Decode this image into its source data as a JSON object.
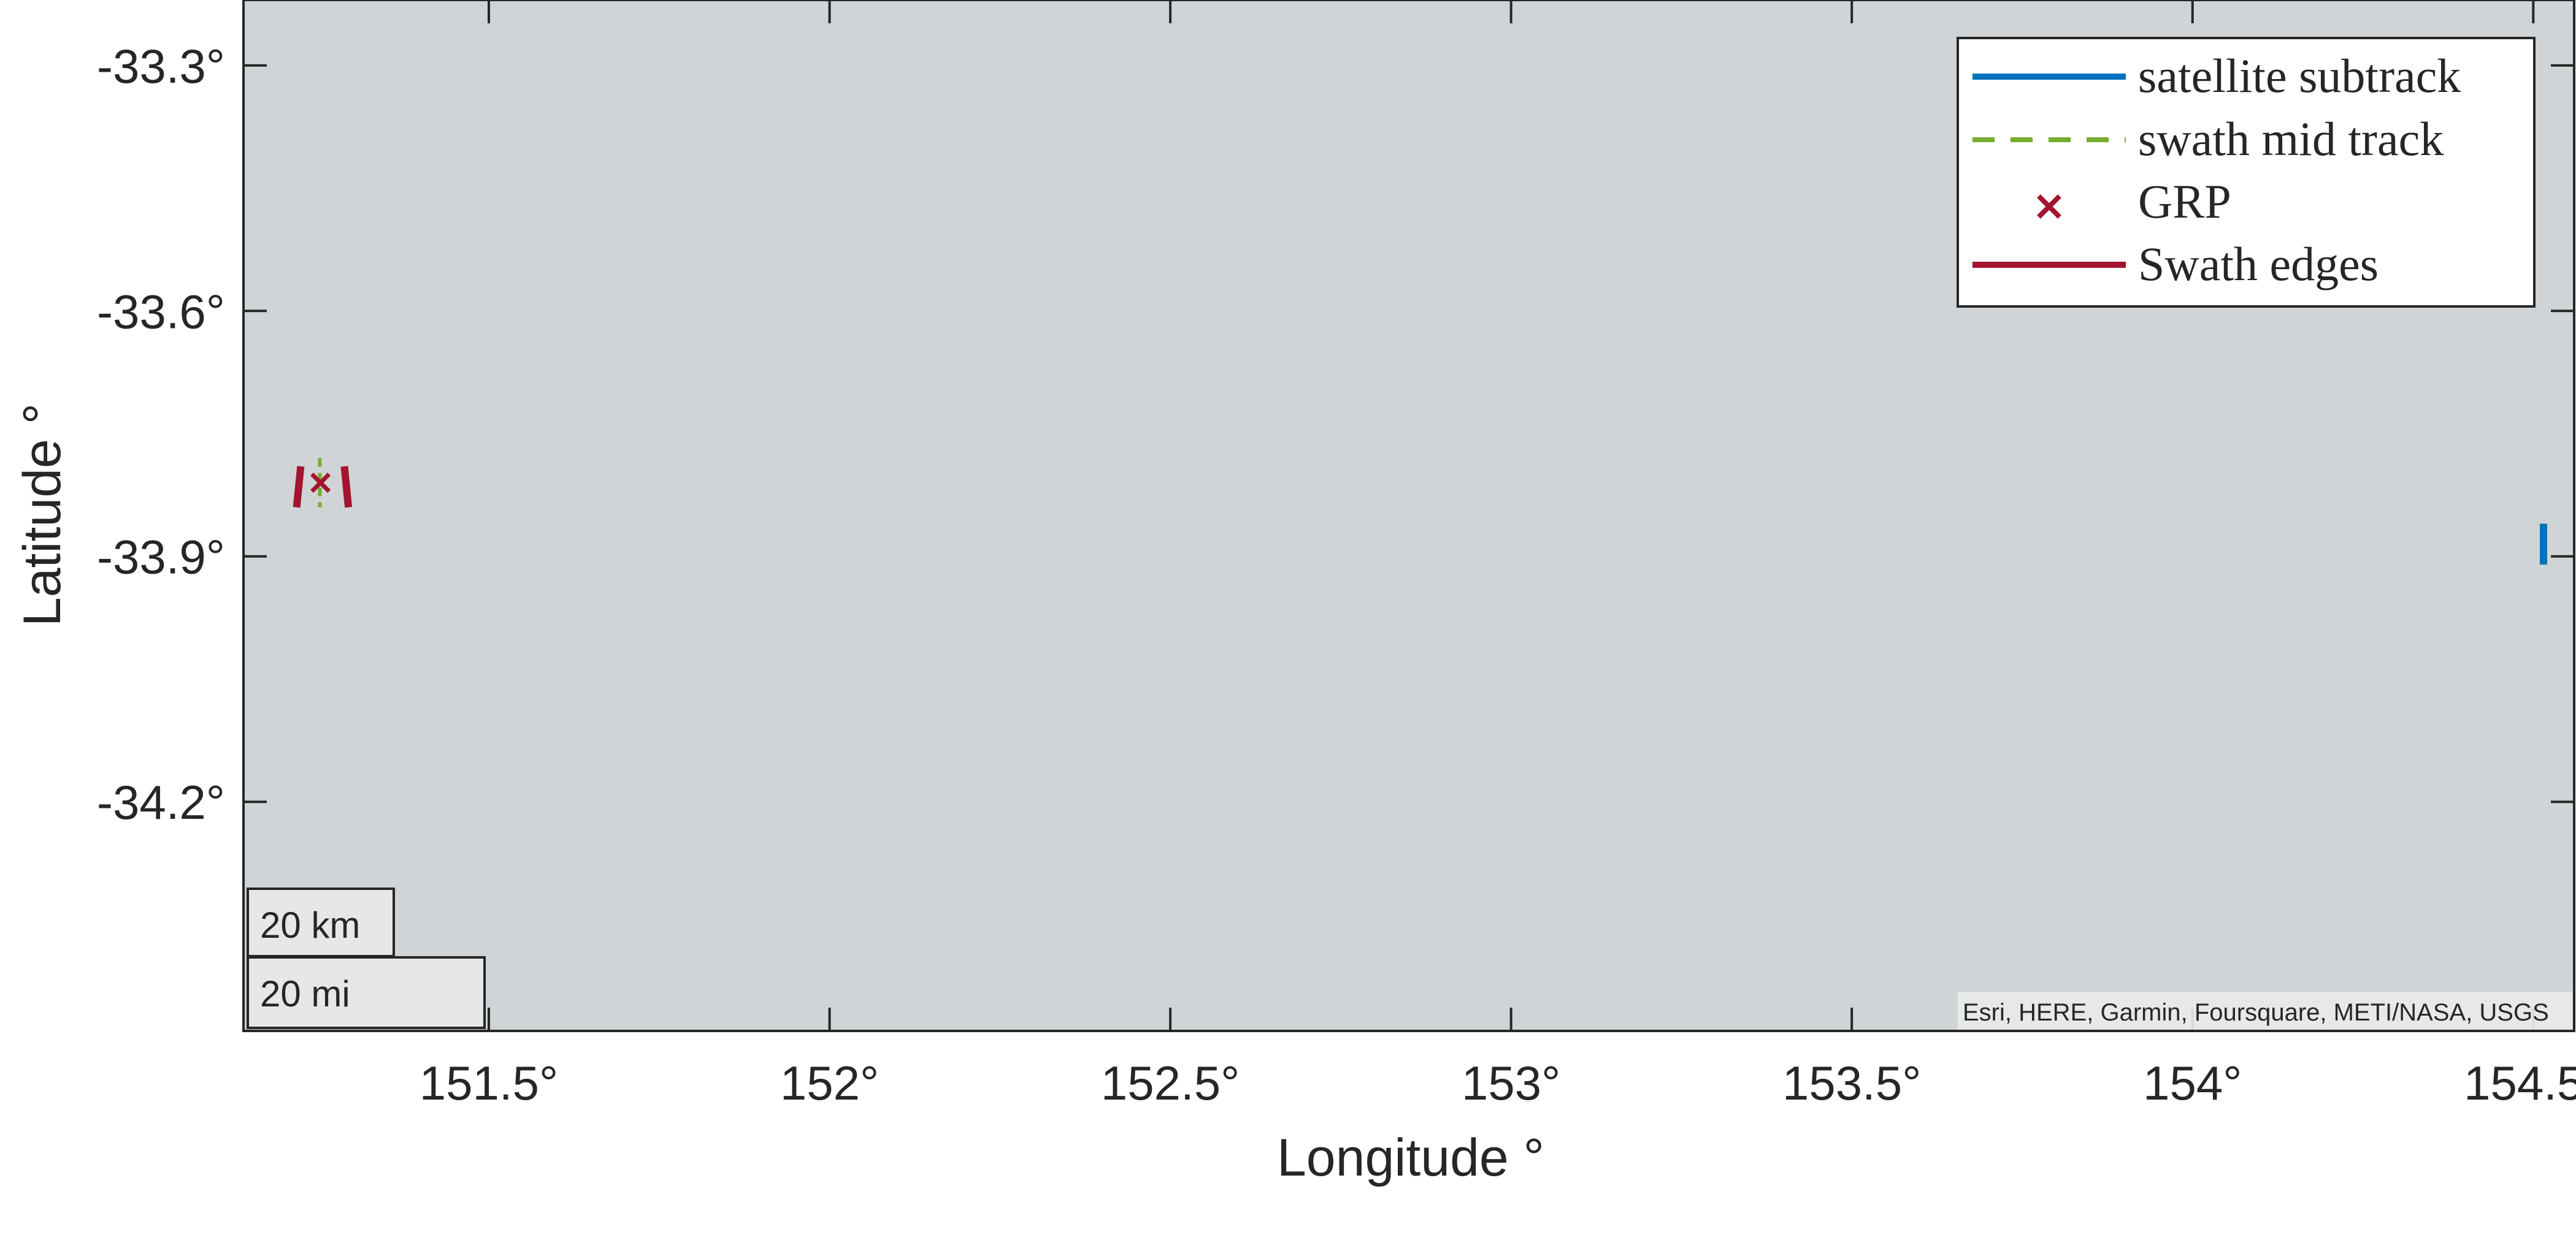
{
  "map": {
    "x_label": "Longitude °",
    "y_label": "Latitude °",
    "background_color": "#d0d4d6",
    "xlim": [
      151.14,
      154.56
    ],
    "ylim": [
      -34.48,
      -33.22
    ],
    "x_ticks": [
      {
        "value": 151.5,
        "label": "151.5°"
      },
      {
        "value": 152.0,
        "label": "152°"
      },
      {
        "value": 152.5,
        "label": "152.5°"
      },
      {
        "value": 153.0,
        "label": "153°"
      },
      {
        "value": 153.5,
        "label": "153.5°"
      },
      {
        "value": 154.0,
        "label": "154°"
      },
      {
        "value": 154.5,
        "label": "154.5°"
      }
    ],
    "y_ticks": [
      {
        "value": -33.3,
        "label": "-33.3°"
      },
      {
        "value": -33.6,
        "label": "-33.6°"
      },
      {
        "value": -33.9,
        "label": "-33.9°"
      },
      {
        "value": -34.2,
        "label": "-34.2°"
      }
    ],
    "legend": {
      "placement": "top-right",
      "entries": [
        {
          "label": "satellite subtrack",
          "style": "solid",
          "color": "#0072bd"
        },
        {
          "label": "swath mid track",
          "style": "dashed",
          "color": "#77ac30"
        },
        {
          "label": "GRP",
          "style": "marker-x",
          "color": "#a2142f"
        },
        {
          "label": "Swath edges",
          "style": "solid",
          "color": "#a2142f"
        }
      ]
    },
    "scale_bar": {
      "km_label": "20 km",
      "mi_label": "20 mi"
    },
    "attribution": "Esri, HERE, Garmin, Foursquare, METI/NASA, USGS",
    "features": {
      "satellite_subtrack": {
        "color": "#0072bd",
        "points": [
          [
            154.515,
            -33.86
          ],
          [
            154.515,
            -33.91
          ]
        ]
      },
      "swath_mid_track": {
        "color": "#77ac30",
        "points": [
          [
            151.252,
            -33.78
          ],
          [
            151.252,
            -33.84
          ]
        ]
      },
      "grp": {
        "color": "#a2142f",
        "point": [
          151.253,
          -33.81
        ]
      },
      "swath_edges": {
        "color": "#a2142f",
        "lines": [
          [
            [
              151.224,
              -33.79
            ],
            [
              151.218,
              -33.84
            ]
          ],
          [
            [
              151.288,
              -33.79
            ],
            [
              151.294,
              -33.84
            ]
          ]
        ]
      }
    }
  }
}
